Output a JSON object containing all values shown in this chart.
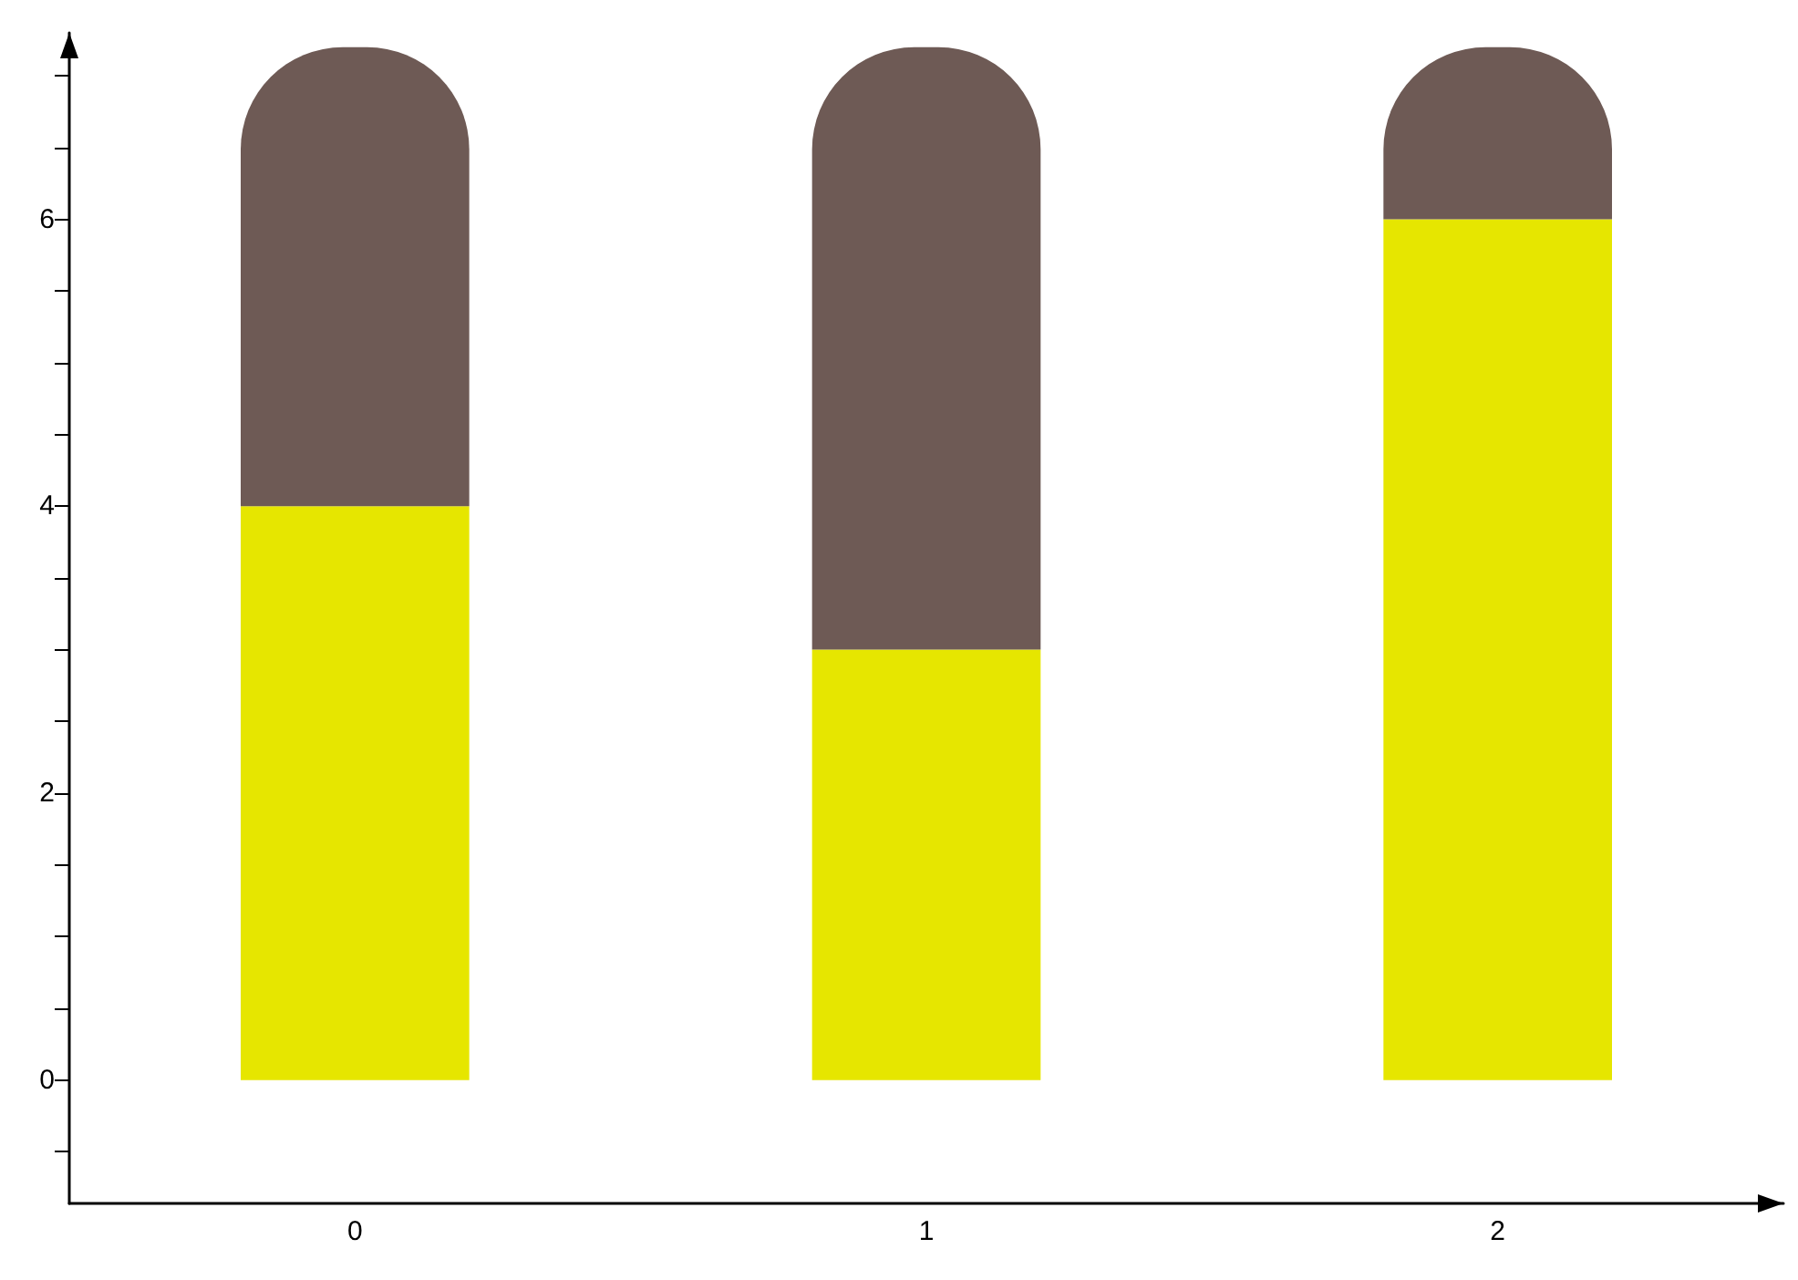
{
  "chart_data": {
    "type": "bar",
    "stacked": true,
    "categories": [
      "0",
      "1",
      "2"
    ],
    "series": [
      {
        "color": "#e6e600",
        "values": [
          4,
          3,
          6
        ]
      },
      {
        "color": "#6e5a55",
        "values": [
          3.2,
          4.2,
          1.2
        ]
      }
    ],
    "ylim": [
      -0.86,
      7.3
    ],
    "yticks": [
      {
        "value": -0.5,
        "label": null
      },
      0,
      {
        "value": 0.5,
        "label": null
      },
      {
        "value": 1,
        "label": null
      },
      {
        "value": 1.5,
        "label": null
      },
      2,
      {
        "value": 2.5,
        "label": null
      },
      {
        "value": 3,
        "label": null
      },
      {
        "value": 3.5,
        "label": null
      },
      4,
      {
        "value": 4.5,
        "label": null
      },
      {
        "value": 5,
        "label": null
      },
      {
        "value": 5.5,
        "label": null
      },
      6,
      {
        "value": 6.5,
        "label": null
      },
      {
        "value": 7,
        "label": null
      }
    ],
    "grid": false
  }
}
